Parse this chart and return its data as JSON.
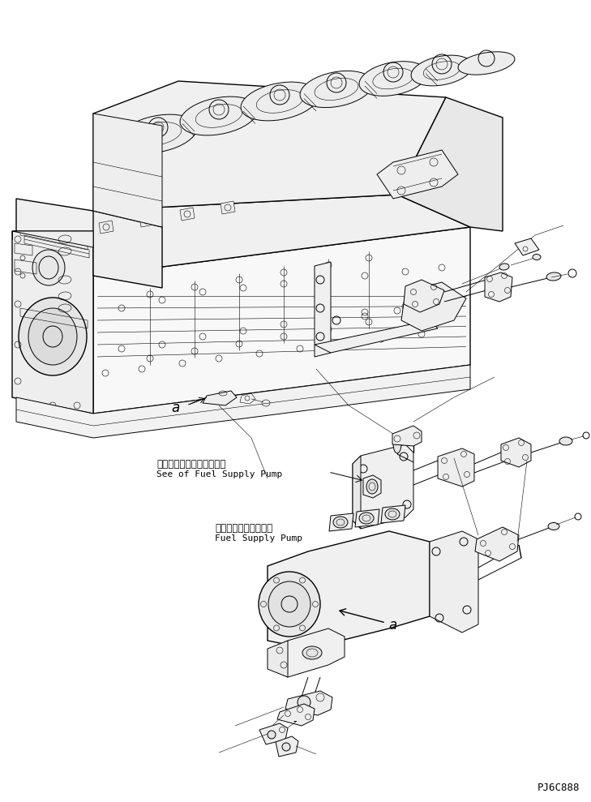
{
  "background_color": "#ffffff",
  "line_color": "#000000",
  "watermark": "PJ6C888",
  "annotation_1_jp": "フェルサプライポンプ参照",
  "annotation_1_en": "See of Fuel Supply Pump",
  "annotation_2_jp": "フェルサプライポンプ",
  "annotation_2_en": "Fuel Supply Pump",
  "dash_marker": "-",
  "font_size_jp": 8.5,
  "font_size_en": 8.0,
  "font_size_label": 12,
  "font_size_watermark": 9
}
